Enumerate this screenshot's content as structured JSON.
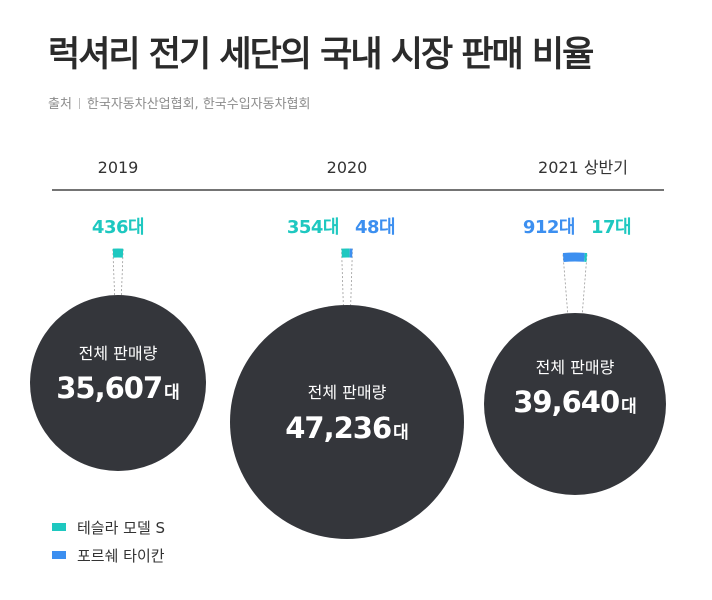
{
  "title": "럭셔리 전기 세단의 국내 시장 판매 비율",
  "source": {
    "label": "출처",
    "text": "한국자동차산업협회, 한국수입자동차협회"
  },
  "colors": {
    "tesla": "#1ec8c0",
    "porsche": "#3c8ff0",
    "circle": "#34363b",
    "circle_text": "#ffffff"
  },
  "legend": [
    {
      "name": "테슬라 모델 S",
      "color": "#1ec8c0"
    },
    {
      "name": "포르쉐 타이칸",
      "color": "#3c8ff0"
    }
  ],
  "chart_data": {
    "type": "pie",
    "title": "럭셔리 전기 세단의 국내 시장 판매 비율",
    "series_names": [
      "테슬라 모델 S",
      "포르쉐 타이칸"
    ],
    "periods": [
      {
        "label": "2019",
        "total": 35607,
        "total_label": "35,607",
        "total_caption": "전체 판매량",
        "unit": "대",
        "slices": [
          {
            "series": "테슬라 모델 S",
            "value": 436,
            "label": "436대"
          }
        ]
      },
      {
        "label": "2020",
        "total": 47236,
        "total_label": "47,236",
        "total_caption": "전체 판매량",
        "unit": "대",
        "slices": [
          {
            "series": "테슬라 모델 S",
            "value": 354,
            "label": "354대"
          },
          {
            "series": "포르쉐 타이칸",
            "value": 48,
            "label": "48대"
          }
        ]
      },
      {
        "label": "2021 상반기",
        "total": 39640,
        "total_label": "39,640",
        "total_caption": "전체 판매량",
        "unit": "대",
        "slices": [
          {
            "series": "포르쉐 타이칸",
            "value": 912,
            "label": "912대"
          },
          {
            "series": "테슬라 모델 S",
            "value": 17,
            "label": "17대"
          }
        ]
      }
    ]
  }
}
